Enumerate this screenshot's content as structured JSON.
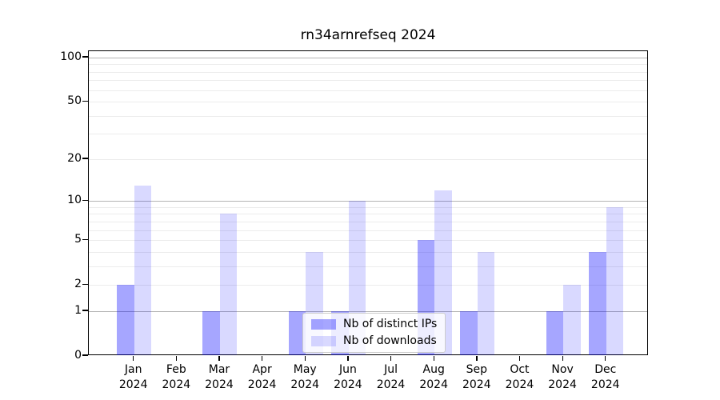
{
  "chart_data": {
    "type": "bar",
    "title": "rn34arnrefseq 2024",
    "categories": [
      "Jan",
      "Feb",
      "Mar",
      "Apr",
      "May",
      "Jun",
      "Jul",
      "Aug",
      "Sep",
      "Oct",
      "Nov",
      "Dec"
    ],
    "x_tick_year": "2024",
    "series": [
      {
        "key": "distinct-ips",
        "name": "Nb of distinct IPs",
        "color": "rgba(0,0,255,0.35)",
        "values": [
          2,
          0,
          1,
          0,
          1,
          1,
          0,
          5,
          1,
          0,
          1,
          4
        ]
      },
      {
        "key": "downloads",
        "name": "Nb of downloads",
        "color": "rgba(0,0,255,0.15)",
        "values": [
          13,
          0,
          8,
          0,
          4,
          10,
          0,
          12,
          4,
          0,
          2,
          9
        ]
      }
    ],
    "y_axis": {
      "scale": "log1p",
      "range": [
        0,
        100
      ],
      "ticks": [
        0,
        1,
        2,
        5,
        10,
        20,
        50,
        100
      ],
      "major_gridlines": [
        1,
        10,
        100
      ],
      "minor_gridlines": [
        2,
        3,
        4,
        5,
        6,
        7,
        8,
        9,
        20,
        30,
        40,
        50,
        60,
        70,
        80,
        90
      ]
    },
    "legend": {
      "position": "lower center"
    }
  }
}
